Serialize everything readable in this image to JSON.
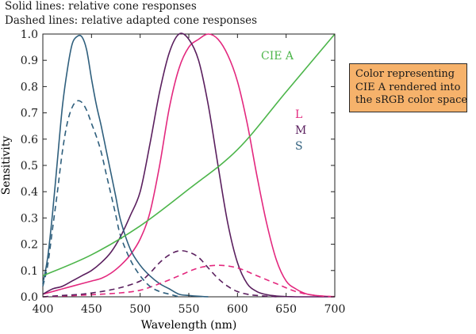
{
  "captions": {
    "line1": "Solid lines: relative cone responses",
    "line2": "Dashed lines: relative adapted cone responses"
  },
  "color_box": {
    "lines": [
      "Color representing",
      "CIE A rendered into",
      "the sRGB color space"
    ],
    "fill_color": "#f6b26b"
  },
  "chart_data": {
    "type": "line",
    "title": "",
    "xlabel": "Wavelength (nm)",
    "ylabel": "Sensitivity",
    "xlim": [
      400,
      700
    ],
    "ylim": [
      0,
      1
    ],
    "x_ticks": [
      400,
      450,
      500,
      550,
      600,
      650,
      700
    ],
    "y_ticks": [
      0.0,
      0.1,
      0.2,
      0.3,
      0.4,
      0.5,
      0.6,
      0.7,
      0.8,
      0.9,
      1.0
    ],
    "y_tick_labels": [
      "0.0",
      "0.1",
      "0.2",
      "0.3",
      "0.4",
      "0.5",
      "0.6",
      "0.7",
      "0.8",
      "0.9",
      "1.0"
    ],
    "grid": false,
    "legend_labels": [
      {
        "text": "L",
        "color": "#e3287e"
      },
      {
        "text": "M",
        "color": "#5a1f5e"
      },
      {
        "text": "S",
        "color": "#2f5f7d"
      }
    ],
    "series": [
      {
        "label": "L",
        "style": "solid",
        "color": "#e3287e",
        "x": [
          400,
          410,
          420,
          430,
          440,
          450,
          460,
          470,
          480,
          490,
          500,
          510,
          520,
          530,
          540,
          550,
          560,
          570,
          580,
          590,
          600,
          610,
          620,
          630,
          640,
          650,
          660,
          670,
          680,
          690,
          700
        ],
        "y": [
          0.01,
          0.02,
          0.03,
          0.04,
          0.05,
          0.06,
          0.07,
          0.09,
          0.12,
          0.16,
          0.22,
          0.32,
          0.5,
          0.72,
          0.87,
          0.95,
          0.98,
          1.0,
          0.98,
          0.92,
          0.82,
          0.66,
          0.46,
          0.28,
          0.14,
          0.06,
          0.03,
          0.012,
          0.005,
          0.002,
          0.001
        ]
      },
      {
        "label": "M",
        "style": "solid",
        "color": "#5a1f5e",
        "x": [
          400,
          410,
          420,
          430,
          440,
          450,
          460,
          470,
          480,
          490,
          500,
          510,
          520,
          530,
          540,
          550,
          560,
          570,
          580,
          590,
          600,
          610,
          620,
          630,
          640,
          650,
          660,
          670,
          680,
          690,
          700
        ],
        "y": [
          0.01,
          0.03,
          0.04,
          0.06,
          0.08,
          0.1,
          0.13,
          0.17,
          0.23,
          0.31,
          0.4,
          0.58,
          0.78,
          0.93,
          1.0,
          0.98,
          0.9,
          0.73,
          0.5,
          0.28,
          0.13,
          0.05,
          0.02,
          0.008,
          0.003,
          0.001,
          0,
          0,
          0,
          0,
          0
        ]
      },
      {
        "label": "S",
        "style": "solid",
        "color": "#2f5f7d",
        "x": [
          400,
          405,
          410,
          415,
          420,
          425,
          430,
          435,
          440,
          445,
          450,
          455,
          460,
          465,
          470,
          475,
          480,
          490,
          500,
          510,
          520,
          530,
          540,
          550,
          560,
          570
        ],
        "y": [
          0.05,
          0.15,
          0.32,
          0.52,
          0.72,
          0.86,
          0.96,
          0.99,
          0.99,
          0.94,
          0.83,
          0.73,
          0.65,
          0.56,
          0.47,
          0.38,
          0.29,
          0.18,
          0.12,
          0.08,
          0.05,
          0.03,
          0.01,
          0.005,
          0.002,
          0
        ]
      },
      {
        "label": "L adapted",
        "style": "dashed",
        "color": "#e3287e",
        "x": [
          400,
          420,
          440,
          460,
          480,
          500,
          520,
          540,
          560,
          580,
          600,
          620,
          640,
          660,
          680,
          700
        ],
        "y": [
          0,
          0.003,
          0.006,
          0.01,
          0.015,
          0.025,
          0.05,
          0.08,
          0.11,
          0.12,
          0.11,
          0.08,
          0.05,
          0.02,
          0.005,
          0
        ]
      },
      {
        "label": "M adapted",
        "style": "dashed",
        "color": "#5a1f5e",
        "x": [
          400,
          420,
          440,
          460,
          480,
          500,
          510,
          520,
          530,
          540,
          550,
          560,
          570,
          580,
          590,
          600,
          610,
          620,
          640
        ],
        "y": [
          0,
          0.005,
          0.01,
          0.02,
          0.035,
          0.06,
          0.09,
          0.13,
          0.16,
          0.175,
          0.17,
          0.15,
          0.11,
          0.07,
          0.04,
          0.02,
          0.01,
          0.005,
          0
        ]
      },
      {
        "label": "S adapted",
        "style": "dashed",
        "color": "#2f5f7d",
        "x": [
          400,
          405,
          410,
          415,
          420,
          425,
          430,
          435,
          440,
          445,
          450,
          455,
          460,
          465,
          470,
          475,
          480,
          490,
          500,
          510,
          520,
          530,
          540
        ],
        "y": [
          0.04,
          0.12,
          0.26,
          0.4,
          0.55,
          0.66,
          0.72,
          0.745,
          0.74,
          0.71,
          0.66,
          0.61,
          0.55,
          0.47,
          0.39,
          0.31,
          0.23,
          0.14,
          0.08,
          0.04,
          0.02,
          0.01,
          0
        ]
      },
      {
        "label": "CIE A",
        "style": "solid",
        "color": "#4cb54a",
        "x": [
          400,
          450,
          500,
          550,
          600,
          650,
          700
        ],
        "y": [
          0.08,
          0.16,
          0.27,
          0.41,
          0.56,
          0.78,
          1.0
        ]
      }
    ]
  }
}
